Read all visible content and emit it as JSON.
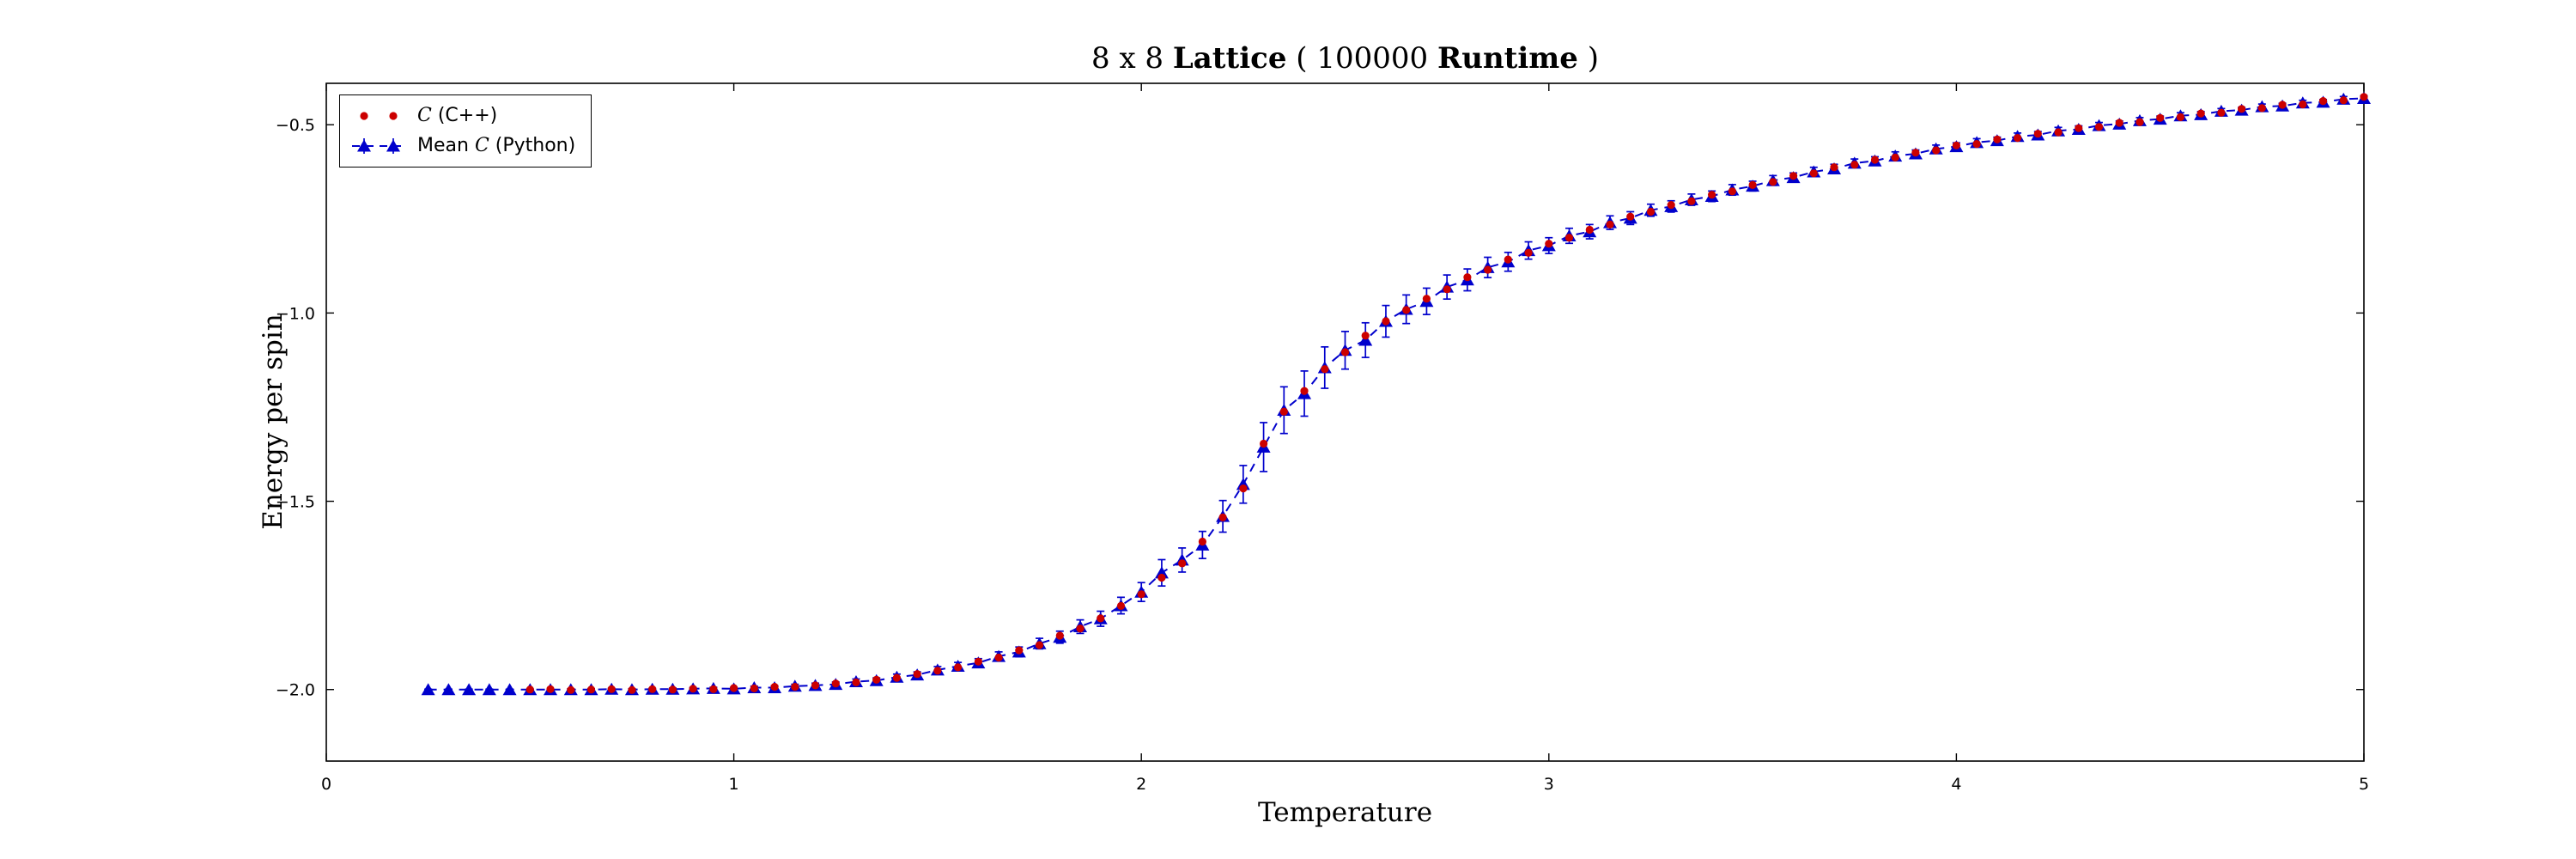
{
  "title": {
    "p1": "8 x 8 ",
    "p2": "Lattice",
    "p3": " ( 100000 ",
    "p4": "Runtime",
    "p5": " )"
  },
  "legend": {
    "entries": [
      {
        "pre": "",
        "italic": "C",
        "post": " (C++)",
        "color": "#cc0000",
        "marker": "circle"
      },
      {
        "pre": "Mean ",
        "italic": "C",
        "post": " (Python)",
        "color": "#0000cc",
        "marker": "triangle-dashed"
      }
    ]
  },
  "chart_data": {
    "type": "scatter",
    "title": "8 x 8 Lattice ( 100000 Runtime )",
    "xlabel": "Temperature",
    "ylabel": "Energy per spin",
    "xlim": [
      0,
      5
    ],
    "ylim": [
      -2.19,
      -0.39
    ],
    "grid": false,
    "legend_position": "upper left",
    "x_ticks": {
      "values": [
        0,
        1,
        2,
        3,
        4,
        5
      ],
      "labels": [
        "0",
        "1",
        "2",
        "3",
        "4",
        "5"
      ]
    },
    "y_ticks": {
      "values": [
        -0.5,
        -1.0,
        -1.5,
        -2.0
      ],
      "labels": [
        "−0.5",
        "−1.0",
        "−1.5",
        "−2.0"
      ]
    },
    "series": [
      {
        "name": "C (C++)",
        "plot_type": "scatter",
        "marker": "circle",
        "color": "#cc0000",
        "zorder": 2,
        "x": [
          0.5,
          0.55,
          0.6,
          0.65,
          0.7,
          0.75,
          0.8,
          0.85,
          0.9,
          0.95,
          1.0,
          1.05,
          1.1,
          1.15,
          1.2,
          1.25,
          1.3,
          1.35,
          1.4,
          1.45,
          1.5,
          1.55,
          1.6,
          1.65,
          1.7,
          1.75,
          1.8,
          1.85,
          1.9,
          1.95,
          2.0,
          2.05,
          2.1,
          2.15,
          2.2,
          2.25,
          2.3,
          2.35,
          2.4,
          2.45,
          2.5,
          2.55,
          2.6,
          2.65,
          2.7,
          2.75,
          2.8,
          2.85,
          2.9,
          2.95,
          3.0,
          3.05,
          3.1,
          3.15,
          3.2,
          3.25,
          3.3,
          3.35,
          3.4,
          3.45,
          3.5,
          3.55,
          3.6,
          3.65,
          3.7,
          3.75,
          3.8,
          3.85,
          3.9,
          3.95,
          4.0,
          4.05,
          4.1,
          4.15,
          4.2,
          4.25,
          4.3,
          4.35,
          4.4,
          4.45,
          4.5,
          4.55,
          4.6,
          4.65,
          4.7,
          4.75,
          4.8,
          4.85,
          4.9,
          4.95,
          5.0
        ],
        "y": [
          -2.0,
          -1.999,
          -2.001,
          -2.0,
          -1.999,
          -2.001,
          -1.999,
          -2.0,
          -1.998,
          -1.999,
          -1.996,
          -1.997,
          -1.993,
          -1.993,
          -1.989,
          -1.984,
          -1.981,
          -1.974,
          -1.969,
          -1.959,
          -1.95,
          -1.941,
          -1.926,
          -1.915,
          -1.896,
          -1.882,
          -1.857,
          -1.838,
          -1.811,
          -1.778,
          -1.747,
          -1.703,
          -1.665,
          -1.607,
          -1.543,
          -1.466,
          -1.347,
          -1.262,
          -1.207,
          -1.149,
          -1.104,
          -1.06,
          -1.022,
          -0.992,
          -0.962,
          -0.937,
          -0.905,
          -0.885,
          -0.858,
          -0.84,
          -0.816,
          -0.8,
          -0.779,
          -0.765,
          -0.744,
          -0.731,
          -0.713,
          -0.703,
          -0.686,
          -0.677,
          -0.66,
          -0.652,
          -0.636,
          -0.629,
          -0.613,
          -0.606,
          -0.593,
          -0.587,
          -0.574,
          -0.568,
          -0.555,
          -0.551,
          -0.539,
          -0.535,
          -0.524,
          -0.52,
          -0.509,
          -0.506,
          -0.495,
          -0.493,
          -0.482,
          -0.48,
          -0.47,
          -0.468,
          -0.458,
          -0.456,
          -0.447,
          -0.446,
          -0.437,
          -0.435,
          -0.426
        ]
      },
      {
        "name": "Mean C (Python)",
        "plot_type": "errorbar",
        "marker": "triangle",
        "linestyle": "dashed",
        "color": "#0000cc",
        "zorder": 1,
        "x": [
          0.25,
          0.3,
          0.35,
          0.4,
          0.45,
          0.5,
          0.55,
          0.6,
          0.65,
          0.7,
          0.75,
          0.8,
          0.85,
          0.9,
          0.95,
          1.0,
          1.05,
          1.1,
          1.15,
          1.2,
          1.25,
          1.3,
          1.35,
          1.4,
          1.45,
          1.5,
          1.55,
          1.6,
          1.65,
          1.7,
          1.75,
          1.8,
          1.85,
          1.9,
          1.95,
          2.0,
          2.05,
          2.1,
          2.15,
          2.2,
          2.25,
          2.3,
          2.35,
          2.4,
          2.45,
          2.5,
          2.55,
          2.6,
          2.65,
          2.7,
          2.75,
          2.8,
          2.85,
          2.9,
          2.95,
          3.0,
          3.05,
          3.1,
          3.15,
          3.2,
          3.25,
          3.3,
          3.35,
          3.4,
          3.45,
          3.5,
          3.55,
          3.6,
          3.65,
          3.7,
          3.75,
          3.8,
          3.85,
          3.9,
          3.95,
          4.0,
          4.05,
          4.1,
          4.15,
          4.2,
          4.25,
          4.3,
          4.35,
          4.4,
          4.45,
          4.5,
          4.55,
          4.6,
          4.65,
          4.7,
          4.75,
          4.8,
          4.85,
          4.9,
          4.95,
          5.0
        ],
        "y": [
          -2.0,
          -2.0,
          -2.0,
          -2.0,
          -2.0,
          -2.0,
          -2.0,
          -2.0,
          -2.0,
          -1.999,
          -2.0,
          -1.999,
          -1.999,
          -1.998,
          -1.997,
          -1.998,
          -1.995,
          -1.995,
          -1.991,
          -1.989,
          -1.986,
          -1.979,
          -1.976,
          -1.967,
          -1.961,
          -1.948,
          -1.938,
          -1.929,
          -1.912,
          -1.9,
          -1.878,
          -1.861,
          -1.833,
          -1.812,
          -1.777,
          -1.741,
          -1.69,
          -1.656,
          -1.616,
          -1.54,
          -1.455,
          -1.356,
          -1.258,
          -1.214,
          -1.145,
          -1.099,
          -1.072,
          -1.022,
          -0.99,
          -0.969,
          -0.931,
          -0.912,
          -0.879,
          -0.864,
          -0.834,
          -0.821,
          -0.795,
          -0.784,
          -0.76,
          -0.748,
          -0.727,
          -0.717,
          -0.699,
          -0.69,
          -0.673,
          -0.663,
          -0.648,
          -0.64,
          -0.625,
          -0.617,
          -0.602,
          -0.596,
          -0.583,
          -0.577,
          -0.564,
          -0.558,
          -0.547,
          -0.542,
          -0.531,
          -0.527,
          -0.516,
          -0.512,
          -0.502,
          -0.498,
          -0.489,
          -0.485,
          -0.476,
          -0.473,
          -0.464,
          -0.461,
          -0.452,
          -0.45,
          -0.442,
          -0.44,
          -0.432,
          -0.43
        ],
        "yerr": [
          0.001,
          0.001,
          0.001,
          0.001,
          0.001,
          0.001,
          0.001,
          0.002,
          0.002,
          0.002,
          0.002,
          0.002,
          0.003,
          0.003,
          0.003,
          0.004,
          0.004,
          0.005,
          0.005,
          0.006,
          0.006,
          0.007,
          0.007,
          0.008,
          0.008,
          0.009,
          0.01,
          0.011,
          0.012,
          0.013,
          0.014,
          0.016,
          0.018,
          0.02,
          0.022,
          0.025,
          0.035,
          0.032,
          0.036,
          0.042,
          0.05,
          0.065,
          0.062,
          0.06,
          0.055,
          0.05,
          0.046,
          0.042,
          0.038,
          0.035,
          0.032,
          0.029,
          0.027,
          0.025,
          0.023,
          0.021,
          0.02,
          0.019,
          0.018,
          0.017,
          0.016,
          0.015,
          0.015,
          0.014,
          0.014,
          0.013,
          0.013,
          0.012,
          0.012,
          0.012,
          0.011,
          0.011,
          0.011,
          0.01,
          0.01,
          0.01,
          0.01,
          0.009,
          0.009,
          0.009,
          0.009,
          0.009,
          0.008,
          0.008,
          0.008,
          0.008,
          0.008,
          0.008,
          0.007,
          0.007,
          0.007,
          0.007,
          0.007,
          0.007,
          0.007,
          0.007
        ]
      }
    ]
  }
}
